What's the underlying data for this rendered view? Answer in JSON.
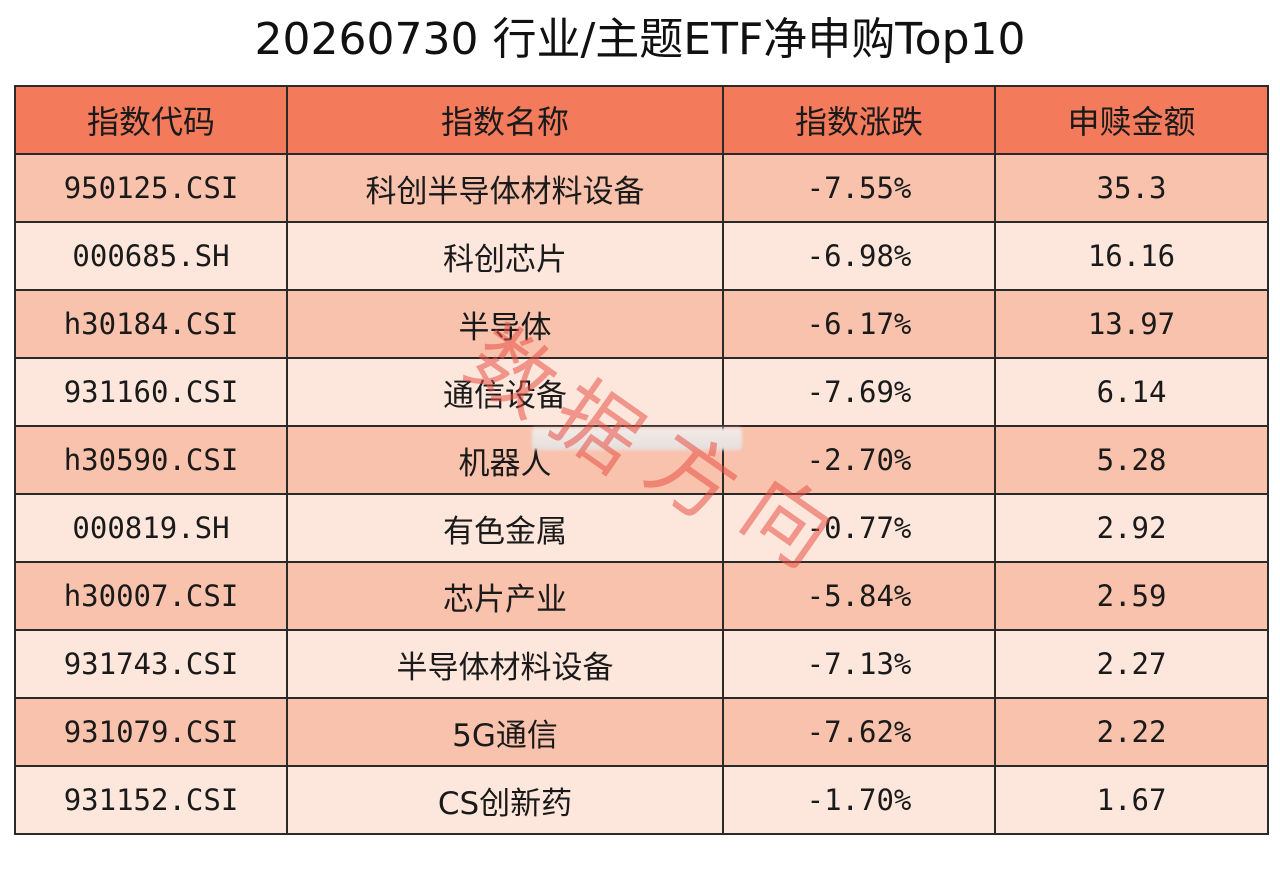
{
  "title": "20260730 行业/主题ETF净申购Top10",
  "colors": {
    "header_bg": "#f47a5c",
    "row_odd_bg": "#f8c2ad",
    "row_even_bg": "#fde6dc",
    "watermark": "#e85046"
  },
  "table": {
    "columns": [
      "指数代码",
      "指数名称",
      "指数涨跌",
      "申赎金额"
    ],
    "rows": [
      {
        "code": "950125.CSI",
        "name": "科创半导体材料设备",
        "change": "-7.55%",
        "amount": "35.3"
      },
      {
        "code": "000685.SH",
        "name": "科创芯片",
        "change": "-6.98%",
        "amount": "16.16"
      },
      {
        "code": "h30184.CSI",
        "name": "半导体",
        "change": "-6.17%",
        "amount": "13.97"
      },
      {
        "code": "931160.CSI",
        "name": "通信设备",
        "change": "-7.69%",
        "amount": "6.14"
      },
      {
        "code": "h30590.CSI",
        "name": "机器人",
        "change": "-2.70%",
        "amount": "5.28"
      },
      {
        "code": "000819.SH",
        "name": "有色金属",
        "change": "-0.77%",
        "amount": "2.92"
      },
      {
        "code": "h30007.CSI",
        "name": "芯片产业",
        "change": "-5.84%",
        "amount": "2.59"
      },
      {
        "code": "931743.CSI",
        "name": "半导体材料设备",
        "change": "-7.13%",
        "amount": "2.27"
      },
      {
        "code": "931079.CSI",
        "name": "5G通信",
        "change": "-7.62%",
        "amount": "2.22"
      },
      {
        "code": "931152.CSI",
        "name": "CS创新药",
        "change": "-1.70%",
        "amount": "1.67"
      }
    ]
  },
  "watermark_text": "数据方向"
}
